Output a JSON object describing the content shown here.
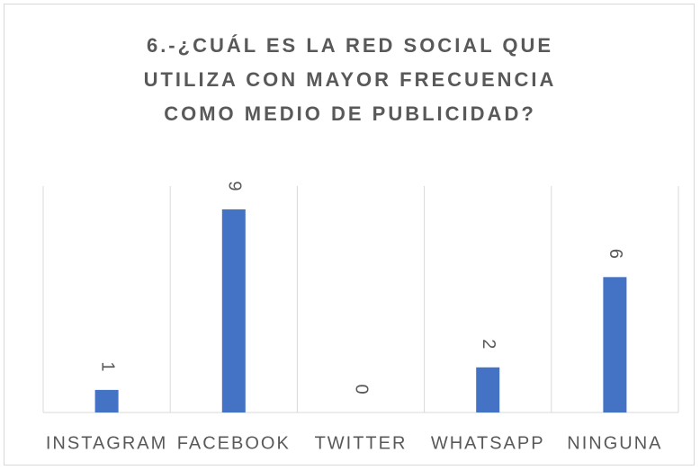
{
  "chart_data": {
    "type": "bar",
    "title": "6.-¿CUÁL ES LA RED SOCIAL QUE UTILIZA CON MAYOR FRECUENCIA COMO MEDIO DE PUBLICIDAD?",
    "categories": [
      "INSTAGRAM",
      "FACEBOOK",
      "TWITTER",
      "WHATSAPP",
      "NINGUNA"
    ],
    "values": [
      1,
      9,
      0,
      2,
      6
    ],
    "color": "#4472c4",
    "grid": true
  }
}
